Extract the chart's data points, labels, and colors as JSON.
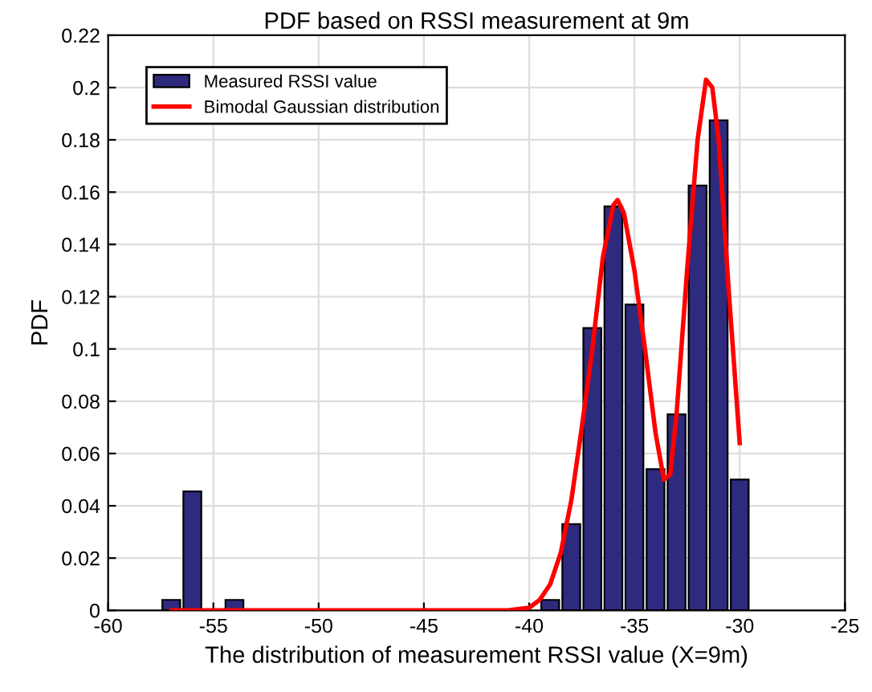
{
  "chart_data": {
    "type": "bar",
    "title": "PDF based on RSSI measurement at 9m",
    "xlabel": "The distribution of measurement RSSI value (X=9m)",
    "ylabel": "PDF",
    "x": [
      -57,
      -56,
      -55,
      -54,
      -53,
      -52,
      -51,
      -50,
      -49,
      -48,
      -47,
      -46,
      -45,
      -44,
      -43,
      -42,
      -41,
      -40,
      -39,
      -38,
      -37,
      -36,
      -35,
      -34,
      -33,
      -32,
      -31,
      -30
    ],
    "series": [
      {
        "name": "Measured RSSI value",
        "color": "#2e2a7e",
        "values": [
          0.004,
          0.0455,
          null,
          0.004,
          null,
          null,
          null,
          null,
          null,
          null,
          null,
          null,
          null,
          null,
          null,
          null,
          null,
          null,
          0.004,
          0.033,
          0.108,
          0.1545,
          0.117,
          0.054,
          0.075,
          0.1625,
          0.1875,
          0.05
        ]
      },
      {
        "name": "Bimodal Gaussian distribution",
        "type": "line",
        "color": "#ff0000",
        "x": [
          -57,
          -42,
          -41,
          -40,
          -39.5,
          -39,
          -38.5,
          -38,
          -37.5,
          -37,
          -36.5,
          -36,
          -35.8,
          -35.5,
          -35,
          -34.5,
          -34,
          -33.6,
          -33.3,
          -33,
          -32.5,
          -32,
          -31.6,
          -31.3,
          -31,
          -30.5,
          -30
        ],
        "values": [
          0,
          0,
          0,
          0.001,
          0.004,
          0.01,
          0.022,
          0.042,
          0.07,
          0.1,
          0.135,
          0.155,
          0.157,
          0.152,
          0.13,
          0.1,
          0.068,
          0.05,
          0.052,
          0.075,
          0.13,
          0.18,
          0.203,
          0.2,
          0.18,
          0.12,
          0.064
        ]
      }
    ],
    "xlim": [
      -60,
      -25
    ],
    "xticks": [
      -60,
      -55,
      -50,
      -45,
      -40,
      -35,
      -30,
      -25
    ],
    "ylim": [
      0,
      0.22
    ],
    "yticks": [
      0,
      0.02,
      0.04,
      0.06,
      0.08,
      0.1,
      0.12,
      0.14,
      0.16,
      0.18,
      0.2,
      0.22
    ],
    "grid": true,
    "legend": "top left"
  }
}
